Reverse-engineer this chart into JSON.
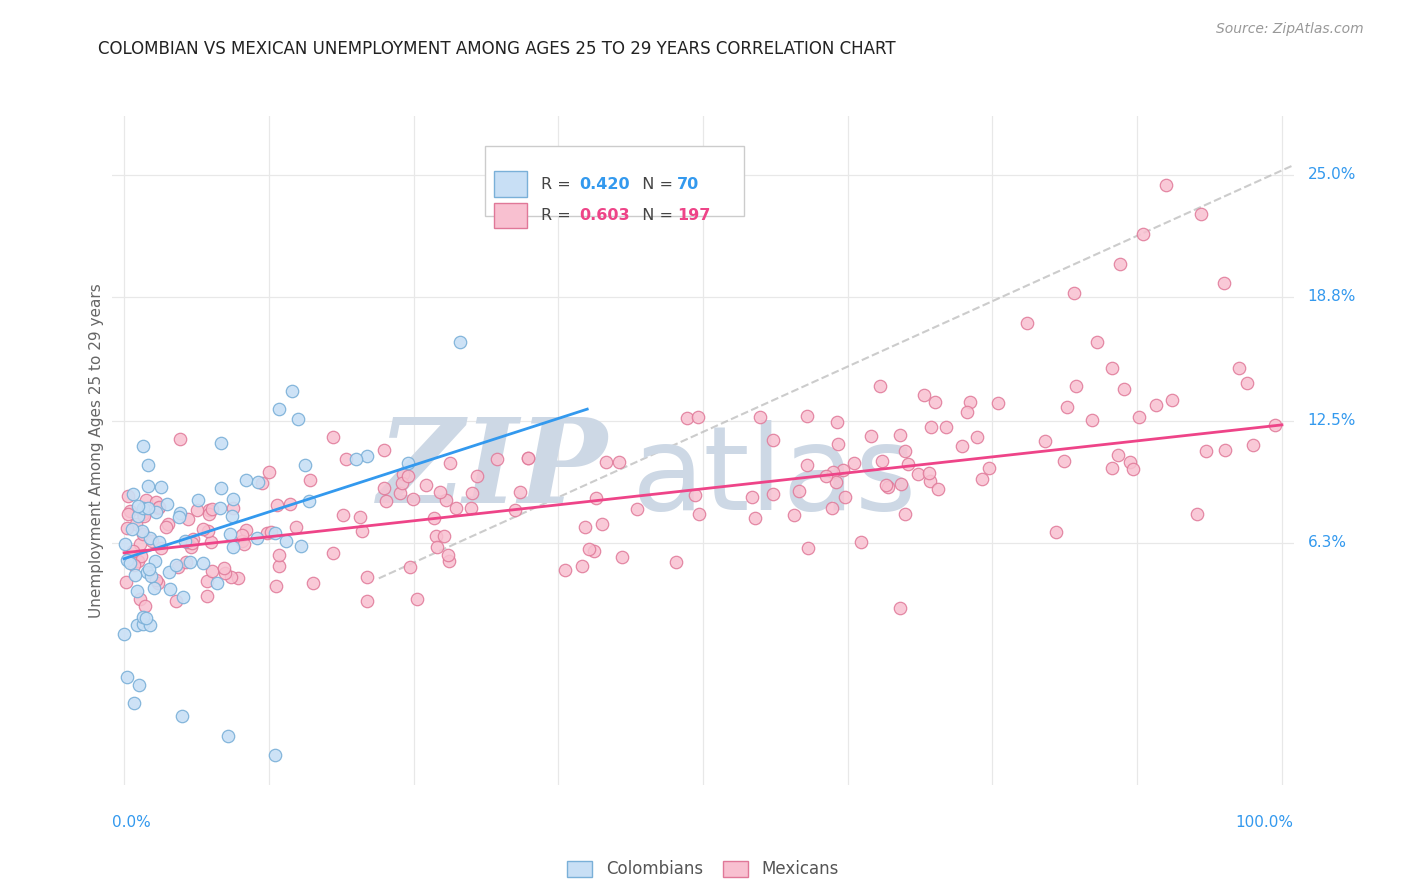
{
  "title": "COLOMBIAN VS MEXICAN UNEMPLOYMENT AMONG AGES 25 TO 29 YEARS CORRELATION CHART",
  "source": "Source: ZipAtlas.com",
  "ylabel": "Unemployment Among Ages 25 to 29 years",
  "xlim": [
    -1,
    101
  ],
  "ylim": [
    -6,
    28
  ],
  "yticks": [
    6.3,
    12.5,
    18.8,
    25.0
  ],
  "ytick_labels": [
    "6.3%",
    "12.5%",
    "18.8%",
    "25.0%"
  ],
  "colombian_R": 0.42,
  "colombian_N": 70,
  "mexican_R": 0.603,
  "mexican_N": 197,
  "colombian_color": "#c8dff5",
  "colombian_edge": "#7ab0d8",
  "mexican_color": "#f8c0d0",
  "mexican_edge": "#e07898",
  "trendline_colombian_color": "#3399ee",
  "trendline_mexican_color": "#ee4488",
  "diag_line_color": "#bbbbbb",
  "watermark_color": "#cdd8e5",
  "background_color": "#ffffff",
  "grid_color": "#e8e8e8",
  "title_color": "#222222",
  "axis_label_color": "#666666",
  "ytick_label_color": "#3399ee",
  "xtick_label_color": "#3399ee",
  "source_color": "#999999",
  "legend_r_col_color": "#3399ee",
  "legend_r_mex_color": "#ee4488",
  "legend_n_col_color": "#3399ee",
  "legend_n_mex_color": "#ee4488",
  "bottom_legend_col_color": "#888888",
  "bottom_legend_mex_color": "#888888",
  "marker_size": 80,
  "trend_lw": 2.0,
  "diag_lw": 1.5
}
